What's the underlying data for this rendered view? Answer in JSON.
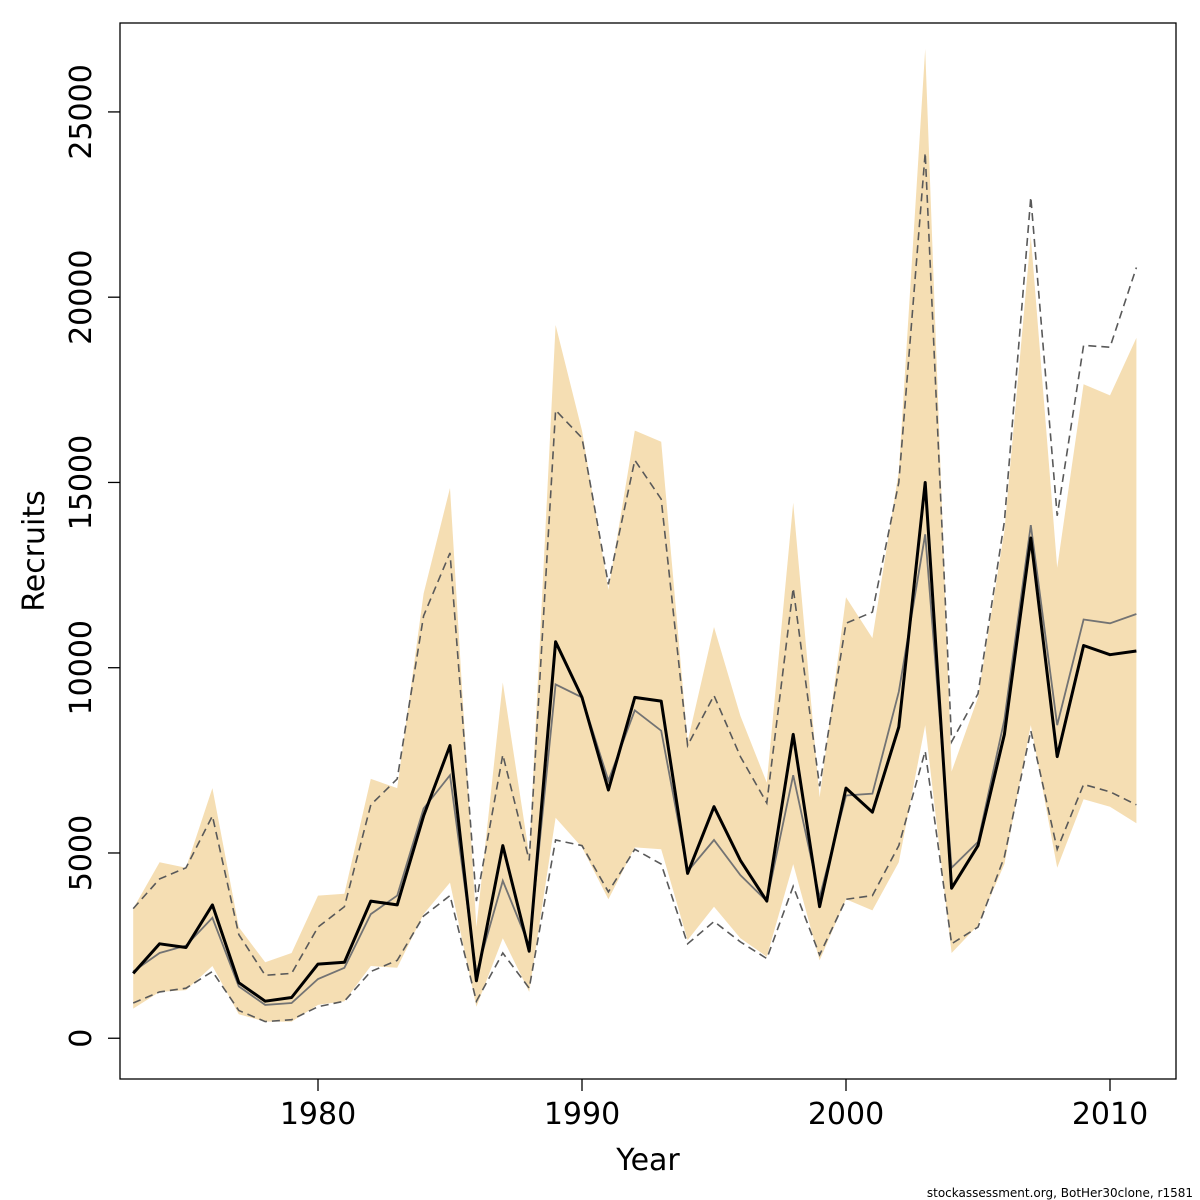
{
  "chart_data": {
    "type": "line",
    "xlabel": "Year",
    "ylabel": "Recruits",
    "xlim": [
      1972.5,
      2012.5
    ],
    "ylim": [
      -1100,
      27400
    ],
    "x_ticks": [
      1980,
      1990,
      2000,
      2010
    ],
    "y_ticks": [
      0,
      5000,
      10000,
      15000,
      20000,
      25000
    ],
    "grid": false,
    "legend": "none",
    "credit": "stockassessment.org, BotHer30clone, r1581",
    "colors": {
      "band": "#f5deb3",
      "main_line": "#000000",
      "alt_line": "#737373",
      "alt_ci": "#595959"
    },
    "x": [
      1973,
      1974,
      1975,
      1976,
      1977,
      1978,
      1979,
      1980,
      1981,
      1982,
      1983,
      1984,
      1985,
      1986,
      1987,
      1988,
      1989,
      1990,
      1991,
      1992,
      1993,
      1994,
      1995,
      1996,
      1997,
      1998,
      1999,
      2000,
      2001,
      2002,
      2003,
      2004,
      2005,
      2006,
      2007,
      2008,
      2009,
      2010,
      2011
    ],
    "series": [
      {
        "role": "band",
        "upper": [
          3500,
          4750,
          4600,
          6750,
          3000,
          2050,
          2300,
          3850,
          3900,
          7000,
          6750,
          12000,
          14850,
          3000,
          9600,
          4950,
          19250,
          16400,
          12100,
          16400,
          16100,
          8000,
          11100,
          8700,
          6900,
          14450,
          6500,
          11900,
          10800,
          15300,
          26700,
          7200,
          9200,
          13700,
          21650,
          12700,
          17650,
          17350,
          18900
        ],
        "lower": [
          800,
          1250,
          1300,
          1950,
          650,
          450,
          450,
          900,
          1000,
          1950,
          1900,
          3350,
          4200,
          850,
          2700,
          1250,
          5950,
          5150,
          3750,
          5150,
          5100,
          2650,
          3550,
          2700,
          2200,
          4700,
          2100,
          3750,
          3450,
          4750,
          8450,
          2300,
          3050,
          4700,
          8450,
          4600,
          6450,
          6250,
          5800
        ]
      },
      {
        "role": "main",
        "values": [
          1750,
          2550,
          2450,
          3600,
          1500,
          1000,
          1100,
          2000,
          2050,
          3700,
          3600,
          6000,
          7900,
          1550,
          5200,
          2350,
          10700,
          9200,
          6700,
          9200,
          9100,
          4450,
          6250,
          4800,
          3700,
          8200,
          3550,
          6750,
          6100,
          8400,
          15000,
          4050,
          5200,
          8200,
          13500,
          7600,
          10600,
          10350,
          10450
        ]
      },
      {
        "role": "alt",
        "values": [
          1800,
          2300,
          2500,
          3250,
          1400,
          900,
          950,
          1600,
          1900,
          3350,
          3850,
          6200,
          7100,
          1750,
          4250,
          2500,
          9550,
          9200,
          6950,
          8850,
          8300,
          4500,
          5350,
          4400,
          3700,
          7100,
          3800,
          6550,
          6600,
          9350,
          13600,
          4600,
          5300,
          8600,
          13850,
          8450,
          11300,
          11200,
          11450
        ]
      },
      {
        "role": "alt_upper",
        "values": [
          3500,
          4300,
          4600,
          6000,
          2800,
          1700,
          1750,
          3000,
          3550,
          6300,
          7000,
          11400,
          13100,
          3700,
          7650,
          4800,
          16950,
          16200,
          12250,
          15600,
          14550,
          7900,
          9250,
          7600,
          6350,
          12150,
          6800,
          11200,
          11500,
          15000,
          23900,
          8000,
          9300,
          13950,
          22700,
          14100,
          18700,
          18650,
          20800
        ]
      },
      {
        "role": "alt_lower",
        "values": [
          950,
          1250,
          1350,
          1800,
          750,
          450,
          500,
          850,
          1000,
          1800,
          2100,
          3300,
          3850,
          1000,
          2300,
          1350,
          5350,
          5200,
          3950,
          5100,
          4700,
          2550,
          3150,
          2600,
          2150,
          4100,
          2250,
          3750,
          3850,
          5200,
          7750,
          2550,
          3000,
          4900,
          8300,
          5100,
          6850,
          6650,
          6300
        ]
      }
    ]
  }
}
